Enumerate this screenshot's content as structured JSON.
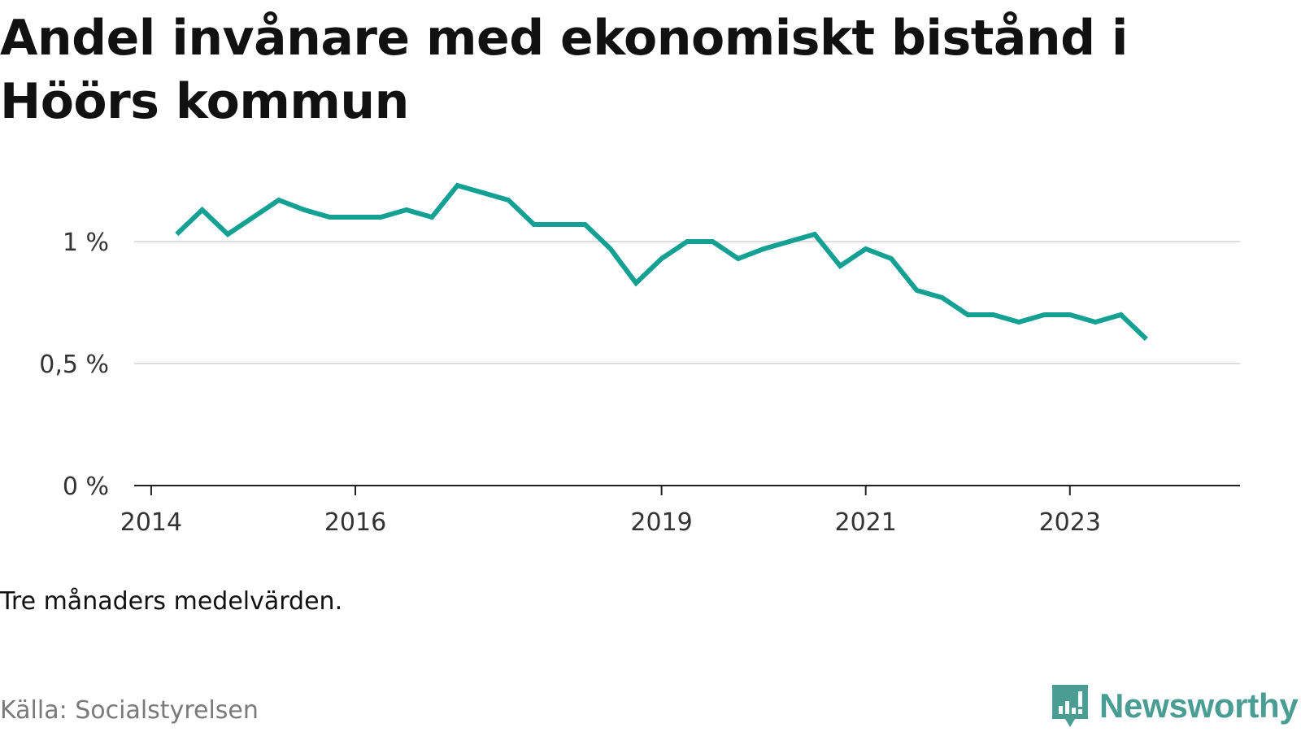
{
  "title": "Andel invånare med ekonomiskt bistånd i Höörs kommun",
  "note": "Tre månaders medelvärden.",
  "source": "Källa: Socialstyrelsen",
  "brand": {
    "name": "Newsworthy",
    "icon": "newsworthy-chart-bubble-icon",
    "color": "#4a9d92"
  },
  "colors": {
    "line": "#14a093",
    "grid": "#dddddd",
    "axis": "#222222",
    "text": "#333333"
  },
  "chart_data": {
    "type": "line",
    "title": "Andel invånare med ekonomiskt bistånd i Höörs kommun",
    "xlabel": "",
    "ylabel": "",
    "unit": "%",
    "ylim": [
      0,
      1.25
    ],
    "xlim": [
      "2013-11",
      "2024-09"
    ],
    "yticks": [
      {
        "value": 0,
        "label": "0 %"
      },
      {
        "value": 0.5,
        "label": "0,5 %"
      },
      {
        "value": 1,
        "label": "1 %"
      }
    ],
    "xticks": [
      {
        "value": "2014-01",
        "label": "2014"
      },
      {
        "value": "2016-01",
        "label": "2016"
      },
      {
        "value": "2019-01",
        "label": "2019"
      },
      {
        "value": "2021-01",
        "label": "2021"
      },
      {
        "value": "2023-01",
        "label": "2023"
      }
    ],
    "grid": true,
    "series": [
      {
        "x": [
          "2014-04",
          "2014-07",
          "2014-10",
          "2015-01",
          "2015-04",
          "2015-07",
          "2015-10",
          "2016-01",
          "2016-04",
          "2016-07",
          "2016-10",
          "2017-01",
          "2017-04",
          "2017-07",
          "2017-10",
          "2018-01",
          "2018-04",
          "2018-07",
          "2018-10",
          "2019-01",
          "2019-04",
          "2019-07",
          "2019-10",
          "2020-01",
          "2020-04",
          "2020-07",
          "2020-10",
          "2021-01",
          "2021-04",
          "2021-07",
          "2021-10",
          "2022-01",
          "2022-04",
          "2022-07",
          "2022-10",
          "2023-01",
          "2023-04",
          "2023-07",
          "2023-10"
        ],
        "values": [
          1.03,
          1.13,
          1.03,
          1.1,
          1.17,
          1.13,
          1.1,
          1.1,
          1.1,
          1.13,
          1.1,
          1.23,
          1.2,
          1.17,
          1.07,
          1.07,
          1.07,
          0.97,
          0.83,
          0.93,
          1.0,
          1.0,
          0.93,
          0.97,
          1.0,
          1.03,
          0.9,
          0.97,
          0.93,
          0.8,
          0.77,
          0.7,
          0.7,
          0.67,
          0.7,
          0.7,
          0.67,
          0.7,
          0.6
        ]
      }
    ]
  }
}
